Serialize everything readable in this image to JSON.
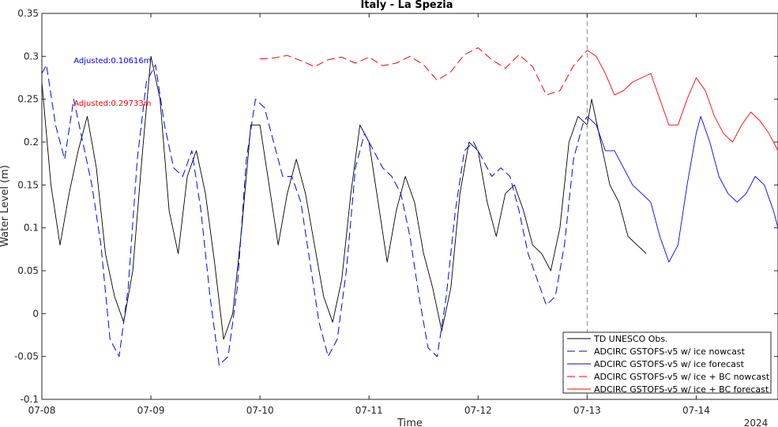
{
  "chart_data": {
    "type": "line",
    "title": "Italy - La Spezia",
    "xlabel": "Time",
    "ylabel": "Water Level (m)",
    "year_label": "2024",
    "ylim": [
      -0.1,
      0.35
    ],
    "yticks": [
      -0.1,
      -0.05,
      0,
      0.05,
      0.1,
      0.15,
      0.2,
      0.25,
      0.3,
      0.35
    ],
    "ytick_labels": [
      "-0.1",
      "-0.05",
      "0",
      "0.05",
      "0.1",
      "0.15",
      "0.2",
      "0.25",
      "0.3",
      "0.35"
    ],
    "xlim": [
      "2024-07-08 00:00",
      "2024-07-14 18:00"
    ],
    "xticks": [
      "2024-07-08",
      "2024-07-09",
      "2024-07-10",
      "2024-07-11",
      "2024-07-12",
      "2024-07-13",
      "2024-07-14"
    ],
    "xtick_labels": [
      "07-08",
      "07-09",
      "07-10",
      "07-11",
      "07-12",
      "07-13",
      "07-14"
    ],
    "nowcast_divider": "2024-07-13 00:00",
    "grid": false,
    "legend_position": "bottom-right",
    "annotations": [
      {
        "text": "Adjusted:0.10616m",
        "color": "#0000ff",
        "x": "2024-07-08 07:00",
        "y": 0.295
      },
      {
        "text": "Adjusted:0.29733m",
        "color": "#ff0000",
        "x": "2024-07-08 07:00",
        "y": 0.245
      }
    ],
    "series": [
      {
        "name": "TD UNESCO Obs.",
        "color": "#000000",
        "dash": "solid",
        "points": [
          [
            "2024-07-08 00:00",
            0.27
          ],
          [
            "2024-07-08 02:00",
            0.15
          ],
          [
            "2024-07-08 04:00",
            0.08
          ],
          [
            "2024-07-08 06:00",
            0.14
          ],
          [
            "2024-07-08 08:00",
            0.19
          ],
          [
            "2024-07-08 10:00",
            0.23
          ],
          [
            "2024-07-08 12:00",
            0.17
          ],
          [
            "2024-07-08 14:00",
            0.07
          ],
          [
            "2024-07-08 16:00",
            0.02
          ],
          [
            "2024-07-08 18:00",
            -0.01
          ],
          [
            "2024-07-08 20:00",
            0.05
          ],
          [
            "2024-07-08 22:00",
            0.18
          ],
          [
            "2024-07-09 00:00",
            0.3
          ],
          [
            "2024-07-09 02:00",
            0.25
          ],
          [
            "2024-07-09 04:00",
            0.12
          ],
          [
            "2024-07-09 06:00",
            0.07
          ],
          [
            "2024-07-09 08:00",
            0.16
          ],
          [
            "2024-07-09 10:00",
            0.19
          ],
          [
            "2024-07-09 12:00",
            0.14
          ],
          [
            "2024-07-09 14:00",
            0.06
          ],
          [
            "2024-07-09 16:00",
            -0.03
          ],
          [
            "2024-07-09 18:00",
            0.0
          ],
          [
            "2024-07-09 20:00",
            0.1
          ],
          [
            "2024-07-09 22:00",
            0.22
          ],
          [
            "2024-07-10 00:00",
            0.22
          ],
          [
            "2024-07-10 02:00",
            0.15
          ],
          [
            "2024-07-10 04:00",
            0.08
          ],
          [
            "2024-07-10 06:00",
            0.14
          ],
          [
            "2024-07-10 08:00",
            0.18
          ],
          [
            "2024-07-10 10:00",
            0.14
          ],
          [
            "2024-07-10 12:00",
            0.08
          ],
          [
            "2024-07-10 14:00",
            0.02
          ],
          [
            "2024-07-10 16:00",
            -0.01
          ],
          [
            "2024-07-10 18:00",
            0.04
          ],
          [
            "2024-07-10 20:00",
            0.14
          ],
          [
            "2024-07-10 22:00",
            0.22
          ],
          [
            "2024-07-11 00:00",
            0.2
          ],
          [
            "2024-07-11 02:00",
            0.13
          ],
          [
            "2024-07-11 04:00",
            0.06
          ],
          [
            "2024-07-11 06:00",
            0.12
          ],
          [
            "2024-07-11 08:00",
            0.16
          ],
          [
            "2024-07-11 10:00",
            0.13
          ],
          [
            "2024-07-11 12:00",
            0.07
          ],
          [
            "2024-07-11 14:00",
            0.03
          ],
          [
            "2024-07-11 16:00",
            -0.02
          ],
          [
            "2024-07-11 18:00",
            0.03
          ],
          [
            "2024-07-11 20:00",
            0.14
          ],
          [
            "2024-07-11 22:00",
            0.2
          ],
          [
            "2024-07-12 00:00",
            0.19
          ],
          [
            "2024-07-12 02:00",
            0.13
          ],
          [
            "2024-07-12 04:00",
            0.09
          ],
          [
            "2024-07-12 06:00",
            0.14
          ],
          [
            "2024-07-12 08:00",
            0.15
          ],
          [
            "2024-07-12 10:00",
            0.12
          ],
          [
            "2024-07-12 12:00",
            0.08
          ],
          [
            "2024-07-12 14:00",
            0.07
          ],
          [
            "2024-07-12 16:00",
            0.05
          ],
          [
            "2024-07-12 18:00",
            0.1
          ],
          [
            "2024-07-12 20:00",
            0.2
          ],
          [
            "2024-07-12 22:00",
            0.23
          ],
          [
            "2024-07-13 00:00",
            0.22
          ],
          [
            "2024-07-13 01:00",
            0.25
          ],
          [
            "2024-07-13 03:00",
            0.2
          ],
          [
            "2024-07-13 05:00",
            0.15
          ],
          [
            "2024-07-13 07:00",
            0.13
          ],
          [
            "2024-07-13 09:00",
            0.09
          ],
          [
            "2024-07-13 11:00",
            0.08
          ],
          [
            "2024-07-13 13:00",
            0.07
          ]
        ]
      },
      {
        "name": "ADCIRC GSTOFS-v5 w/ ice nowcast",
        "color": "#0000ff",
        "dash": "dashed",
        "points": [
          [
            "2024-07-08 00:00",
            0.28
          ],
          [
            "2024-07-08 01:00",
            0.29
          ],
          [
            "2024-07-08 03:00",
            0.22
          ],
          [
            "2024-07-08 05:00",
            0.18
          ],
          [
            "2024-07-08 07:00",
            0.25
          ],
          [
            "2024-07-08 09:00",
            0.2
          ],
          [
            "2024-07-08 11:00",
            0.15
          ],
          [
            "2024-07-08 13:00",
            0.08
          ],
          [
            "2024-07-08 15:00",
            -0.03
          ],
          [
            "2024-07-08 17:00",
            -0.05
          ],
          [
            "2024-07-08 19:00",
            0.03
          ],
          [
            "2024-07-08 21:00",
            0.18
          ],
          [
            "2024-07-08 23:00",
            0.27
          ],
          [
            "2024-07-09 01:00",
            0.29
          ],
          [
            "2024-07-09 03:00",
            0.22
          ],
          [
            "2024-07-09 05:00",
            0.17
          ],
          [
            "2024-07-09 07:00",
            0.16
          ],
          [
            "2024-07-09 09:00",
            0.19
          ],
          [
            "2024-07-09 11:00",
            0.12
          ],
          [
            "2024-07-09 13:00",
            0.02
          ],
          [
            "2024-07-09 15:00",
            -0.06
          ],
          [
            "2024-07-09 17:00",
            -0.05
          ],
          [
            "2024-07-09 19:00",
            0.03
          ],
          [
            "2024-07-09 21:00",
            0.18
          ],
          [
            "2024-07-09 23:00",
            0.25
          ],
          [
            "2024-07-10 01:00",
            0.24
          ],
          [
            "2024-07-10 03:00",
            0.2
          ],
          [
            "2024-07-10 05:00",
            0.16
          ],
          [
            "2024-07-10 07:00",
            0.16
          ],
          [
            "2024-07-10 09:00",
            0.13
          ],
          [
            "2024-07-10 11:00",
            0.06
          ],
          [
            "2024-07-10 13:00",
            -0.01
          ],
          [
            "2024-07-10 15:00",
            -0.05
          ],
          [
            "2024-07-10 17:00",
            -0.03
          ],
          [
            "2024-07-10 19:00",
            0.05
          ],
          [
            "2024-07-10 21:00",
            0.17
          ],
          [
            "2024-07-10 23:00",
            0.21
          ],
          [
            "2024-07-11 01:00",
            0.19
          ],
          [
            "2024-07-11 03:00",
            0.17
          ],
          [
            "2024-07-11 05:00",
            0.16
          ],
          [
            "2024-07-11 07:00",
            0.14
          ],
          [
            "2024-07-11 09:00",
            0.09
          ],
          [
            "2024-07-11 11:00",
            0.02
          ],
          [
            "2024-07-11 13:00",
            -0.04
          ],
          [
            "2024-07-11 15:00",
            -0.05
          ],
          [
            "2024-07-11 17:00",
            0.02
          ],
          [
            "2024-07-11 19:00",
            0.12
          ],
          [
            "2024-07-11 21:00",
            0.19
          ],
          [
            "2024-07-11 23:00",
            0.2
          ],
          [
            "2024-07-12 01:00",
            0.18
          ],
          [
            "2024-07-12 03:00",
            0.16
          ],
          [
            "2024-07-12 05:00",
            0.17
          ],
          [
            "2024-07-12 07:00",
            0.16
          ],
          [
            "2024-07-12 09:00",
            0.12
          ],
          [
            "2024-07-12 11:00",
            0.07
          ],
          [
            "2024-07-12 13:00",
            0.04
          ],
          [
            "2024-07-12 15:00",
            0.01
          ],
          [
            "2024-07-12 17:00",
            0.02
          ],
          [
            "2024-07-12 19:00",
            0.08
          ],
          [
            "2024-07-12 21:00",
            0.18
          ],
          [
            "2024-07-12 23:00",
            0.22
          ],
          [
            "2024-07-13 00:00",
            0.23
          ]
        ]
      },
      {
        "name": "ADCIRC GSTOFS-v5 w/ ice forecast",
        "color": "#0000ff",
        "dash": "solid",
        "points": [
          [
            "2024-07-13 00:00",
            0.23
          ],
          [
            "2024-07-13 02:00",
            0.22
          ],
          [
            "2024-07-13 04:00",
            0.19
          ],
          [
            "2024-07-13 06:00",
            0.19
          ],
          [
            "2024-07-13 08:00",
            0.17
          ],
          [
            "2024-07-13 10:00",
            0.15
          ],
          [
            "2024-07-13 12:00",
            0.14
          ],
          [
            "2024-07-13 14:00",
            0.13
          ],
          [
            "2024-07-13 16:00",
            0.09
          ],
          [
            "2024-07-13 18:00",
            0.06
          ],
          [
            "2024-07-13 20:00",
            0.08
          ],
          [
            "2024-07-13 22:00",
            0.15
          ],
          [
            "2024-07-14 00:00",
            0.21
          ],
          [
            "2024-07-14 01:00",
            0.23
          ],
          [
            "2024-07-14 03:00",
            0.2
          ],
          [
            "2024-07-14 05:00",
            0.16
          ],
          [
            "2024-07-14 07:00",
            0.14
          ],
          [
            "2024-07-14 09:00",
            0.13
          ],
          [
            "2024-07-14 11:00",
            0.14
          ],
          [
            "2024-07-14 13:00",
            0.16
          ],
          [
            "2024-07-14 15:00",
            0.15
          ],
          [
            "2024-07-14 17:00",
            0.12
          ],
          [
            "2024-07-14 18:00",
            0.1
          ]
        ]
      },
      {
        "name": "ADCIRC GSTOFS-v5 w/ ice + BC nowcast",
        "color": "#ff0000",
        "dash": "dashed",
        "points": [
          [
            "2024-07-10 00:00",
            0.297
          ],
          [
            "2024-07-10 03:00",
            0.298
          ],
          [
            "2024-07-10 06:00",
            0.301
          ],
          [
            "2024-07-10 09:00",
            0.295
          ],
          [
            "2024-07-10 12:00",
            0.288
          ],
          [
            "2024-07-10 15:00",
            0.296
          ],
          [
            "2024-07-10 18:00",
            0.299
          ],
          [
            "2024-07-10 21:00",
            0.292
          ],
          [
            "2024-07-11 00:00",
            0.299
          ],
          [
            "2024-07-11 03:00",
            0.289
          ],
          [
            "2024-07-11 06:00",
            0.292
          ],
          [
            "2024-07-11 09:00",
            0.3
          ],
          [
            "2024-07-11 12:00",
            0.29
          ],
          [
            "2024-07-11 15:00",
            0.272
          ],
          [
            "2024-07-11 18:00",
            0.282
          ],
          [
            "2024-07-11 21:00",
            0.302
          ],
          [
            "2024-07-12 00:00",
            0.31
          ],
          [
            "2024-07-12 03:00",
            0.296
          ],
          [
            "2024-07-12 06:00",
            0.286
          ],
          [
            "2024-07-12 09:00",
            0.302
          ],
          [
            "2024-07-12 12:00",
            0.288
          ],
          [
            "2024-07-12 15:00",
            0.255
          ],
          [
            "2024-07-12 18:00",
            0.26
          ],
          [
            "2024-07-12 21:00",
            0.289
          ],
          [
            "2024-07-13 00:00",
            0.307
          ]
        ]
      },
      {
        "name": "ADCIRC GSTOFS-v5 w/ ice + BC forecast",
        "color": "#ff0000",
        "dash": "solid",
        "points": [
          [
            "2024-07-13 00:00",
            0.307
          ],
          [
            "2024-07-13 02:00",
            0.3
          ],
          [
            "2024-07-13 04:00",
            0.28
          ],
          [
            "2024-07-13 06:00",
            0.255
          ],
          [
            "2024-07-13 08:00",
            0.26
          ],
          [
            "2024-07-13 10:00",
            0.27
          ],
          [
            "2024-07-13 12:00",
            0.275
          ],
          [
            "2024-07-13 14:00",
            0.28
          ],
          [
            "2024-07-13 16:00",
            0.25
          ],
          [
            "2024-07-13 18:00",
            0.22
          ],
          [
            "2024-07-13 20:00",
            0.22
          ],
          [
            "2024-07-13 22:00",
            0.25
          ],
          [
            "2024-07-14 00:00",
            0.275
          ],
          [
            "2024-07-14 02:00",
            0.26
          ],
          [
            "2024-07-14 04:00",
            0.23
          ],
          [
            "2024-07-14 06:00",
            0.21
          ],
          [
            "2024-07-14 08:00",
            0.2
          ],
          [
            "2024-07-14 10:00",
            0.22
          ],
          [
            "2024-07-14 12:00",
            0.235
          ],
          [
            "2024-07-14 14:00",
            0.225
          ],
          [
            "2024-07-14 16:00",
            0.21
          ],
          [
            "2024-07-14 18:00",
            0.19
          ]
        ]
      }
    ]
  }
}
